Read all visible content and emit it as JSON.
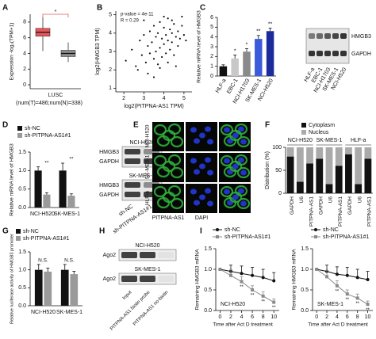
{
  "chart_data": [
    {
      "type": "box",
      "panel": "A",
      "ylabel": "Expression -log₂(TPM+1)",
      "categories": [
        "LUSC"
      ],
      "category_note": "(num(T)=486;num(N)=338)",
      "boxes": [
        {
          "color": "#e8585a",
          "min": 4.3,
          "q1": 6.2,
          "median": 6.7,
          "q3": 7.2,
          "max": 8.6
        },
        {
          "color": "#8c8c8c",
          "min": 2.9,
          "q1": 3.6,
          "median": 4.0,
          "q3": 4.4,
          "max": 5.4
        }
      ],
      "significance": "*",
      "ylim": [
        -0.5,
        9
      ],
      "yticks": [
        0,
        2,
        4,
        6,
        8
      ]
    },
    {
      "type": "scatter",
      "panel": "B",
      "xlabel": "log2(PITPNA-AS1 TPM)",
      "ylabel": "log2(HMGB3 TPM)",
      "annotations": [
        "p-value = 4e-11",
        "R = 0.29"
      ],
      "x": [
        2.1,
        2.4,
        2.6,
        2.8,
        2.9,
        3.0,
        3.1,
        3.2,
        3.3,
        3.3,
        3.4,
        3.5,
        3.5,
        3.6,
        3.6,
        3.7,
        3.7,
        3.8,
        3.8,
        3.9,
        3.9,
        4.0,
        4.0,
        4.1,
        4.1,
        4.2,
        4.2,
        4.3,
        4.3,
        4.4,
        4.4,
        4.5,
        4.5,
        4.6,
        4.7,
        4.7,
        4.8,
        4.9,
        5.0,
        5.1,
        3.2,
        3.0,
        4.6,
        2.7,
        4.9,
        3.5,
        4.0,
        3.8,
        4.2,
        4.4
      ],
      "y": [
        2.5,
        3.1,
        2.2,
        3.6,
        2.8,
        3.9,
        2.4,
        3.3,
        4.1,
        2.9,
        3.5,
        2.6,
        4.4,
        3.0,
        3.8,
        2.3,
        4.0,
        3.2,
        4.6,
        2.7,
        3.7,
        3.4,
        4.3,
        2.9,
        3.9,
        3.6,
        4.8,
        3.1,
        4.2,
        3.5,
        4.0,
        2.8,
        4.5,
        3.8,
        3.3,
        4.1,
        3.7,
        4.4,
        3.9,
        3.6,
        1.8,
        4.7,
        2.2,
        2.0,
        4.9,
        1.6,
        4.9,
        2.1,
        2.4,
        4.7
      ],
      "color": "#111111",
      "xlim": [
        1.6,
        5.4
      ],
      "xticks": [
        2,
        3,
        4,
        5
      ],
      "ylim": [
        0.8,
        5.2
      ],
      "yticks": [
        1,
        2,
        3,
        4,
        5
      ]
    },
    {
      "type": "bar",
      "panel": "C",
      "ylabel": "Relative mRNA level of HMGB3",
      "categories": [
        "HLF-a",
        "EBC-1",
        "NCI-H1703",
        "SK-MES-1",
        "NCI-H520"
      ],
      "values": [
        1.0,
        1.8,
        2.5,
        3.8,
        4.6
      ],
      "errors": [
        0.15,
        0.35,
        0.3,
        0.35,
        0.3
      ],
      "colors": [
        "#111111",
        "#c8c8c8",
        "#8a8a8a",
        "#3b5bdb",
        "#1c2c9c"
      ],
      "significance": [
        null,
        "*",
        "*",
        "**",
        "**"
      ],
      "ylim": [
        0,
        6
      ],
      "yticks": [
        0,
        1,
        2,
        3,
        4,
        5,
        6
      ]
    },
    {
      "type": "bar",
      "panel": "D",
      "ylabel": "Relative mRNA level of HMGB3",
      "categories": [
        "NCI-H520",
        "SK-MES-1"
      ],
      "series": [
        {
          "name": "sh-NC",
          "color": "#111111",
          "values": [
            1.0,
            1.0
          ],
          "errors": [
            0.1,
            0.2
          ]
        },
        {
          "name": "sh-PITPNA-AS1#1",
          "color": "#9a9a9a",
          "values": [
            0.35,
            0.32
          ],
          "errors": [
            0.05,
            0.05
          ],
          "significance": [
            "**",
            "**"
          ]
        }
      ],
      "ylim": [
        0,
        1.5
      ],
      "yticks": [
        {
          "value": 0,
          "label": "0.0"
        },
        0.5,
        {
          "value": 1,
          "label": "1.0"
        },
        1.5
      ]
    },
    {
      "type": "stacked_bar",
      "panel": "F",
      "ylabel": "Distribution (%)",
      "groups": [
        "NCI-H520",
        "SK-MES-1",
        "HLF-a"
      ],
      "categories": [
        "GAPDH",
        "U6",
        "PITPNA-AS1",
        "GAPDH",
        "U6",
        "PITPNA-AS1",
        "GAPDH",
        "U6",
        "PITPNA-AS1"
      ],
      "series": [
        {
          "name": "Cytoplasm",
          "color": "#111111",
          "values": [
            80,
            25,
            65,
            75,
            20,
            60,
            85,
            20,
            75
          ],
          "errors": [
            8,
            10,
            6,
            8,
            10,
            8,
            6,
            10,
            6
          ]
        },
        {
          "name": "Nucleus",
          "color": "#aaaaaa",
          "values": [
            20,
            75,
            35,
            25,
            80,
            40,
            15,
            80,
            25
          ]
        }
      ],
      "ylim": [
        0,
        100
      ],
      "yticks": [
        0,
        50,
        100
      ]
    },
    {
      "type": "bar",
      "panel": "G",
      "ylabel": "Relative luciferase activity of HMGB3 promoter",
      "categories": [
        "NCI-H520",
        "SK-MES-1"
      ],
      "series": [
        {
          "name": "sh-NC",
          "color": "#111111",
          "values": [
            1.0,
            1.0
          ],
          "errors": [
            0.15,
            0.15
          ]
        },
        {
          "name": "sh-PITPNA-AS1#1",
          "color": "#9a9a9a",
          "values": [
            0.95,
            0.88
          ],
          "errors": [
            0.1,
            0.08
          ],
          "significance": [
            "N.S.",
            "N.S."
          ]
        }
      ],
      "ylim": [
        0,
        1.5
      ],
      "yticks": [
        {
          "value": 0,
          "label": "0.0"
        },
        0.5,
        {
          "value": 1,
          "label": "1.0"
        },
        1.5
      ]
    },
    {
      "type": "line",
      "panel": "I",
      "ylabel": "Remaining HMGB3 mRNA",
      "xlabel": "Time after Act D treatment",
      "annotation": "NCI-H520",
      "x": [
        0,
        2,
        4,
        6,
        8,
        10
      ],
      "series": [
        {
          "name": "sh-NC",
          "color": "#111111",
          "marker": "circle",
          "values": [
            1.0,
            0.95,
            0.9,
            0.85,
            0.8,
            0.72
          ],
          "errors": [
            0,
            0.15,
            0.18,
            0.2,
            0.2,
            0.2
          ]
        },
        {
          "name": "sh-PITPNA-AS1#1",
          "color": "#8a8a8a",
          "marker": "square",
          "values": [
            1.0,
            0.85,
            0.7,
            0.5,
            0.35,
            0.2
          ],
          "errors": [
            0,
            0.15,
            0.12,
            0.1,
            0.1,
            0.08
          ],
          "significance": [
            null,
            null,
            "**",
            "**",
            "**",
            "**"
          ]
        }
      ],
      "xlim": [
        -0.8,
        11
      ],
      "xticks": [
        0,
        2,
        4,
        6,
        8,
        10
      ],
      "ylim": [
        0,
        1.5
      ],
      "yticks": [
        {
          "value": 0,
          "label": "0.0"
        },
        0.5,
        {
          "value": 1,
          "label": "1.0"
        },
        1.5
      ]
    },
    {
      "type": "line",
      "ylabel": "Remaining HMGB3 mRNA",
      "xlabel": "Time after Act D treatment",
      "annotation": "SK-MES-1",
      "x": [
        0,
        2,
        4,
        6,
        8,
        10
      ],
      "series": [
        {
          "name": "sh-NC",
          "color": "#111111",
          "marker": "circle",
          "values": [
            1.0,
            0.95,
            0.88,
            0.85,
            0.8,
            0.75
          ],
          "errors": [
            0,
            0.15,
            0.18,
            0.2,
            0.2,
            0.2
          ]
        },
        {
          "name": "sh-PITPNA-AS1#1",
          "color": "#8a8a8a",
          "marker": "square",
          "values": [
            1.0,
            0.82,
            0.6,
            0.4,
            0.3,
            0.15
          ],
          "errors": [
            0,
            0.15,
            0.12,
            0.1,
            0.1,
            0.08
          ],
          "significance": [
            null,
            null,
            "**",
            "**",
            "**",
            "**"
          ]
        }
      ],
      "xlim": [
        -0.8,
        11
      ],
      "xticks": [
        0,
        2,
        4,
        6,
        8,
        10
      ],
      "ylim": [
        0,
        1.5
      ],
      "yticks": [
        {
          "value": 0,
          "label": "0.0"
        },
        0.5,
        {
          "value": 1,
          "label": "1.0"
        },
        1.5
      ]
    }
  ],
  "figures": [
    {
      "rows": [
        "HMGB3",
        "GAPDH"
      ],
      "lanes": [
        "HLF-a",
        "EBC-1",
        "NCI-H1703",
        "SK-MES-1",
        "NCI-H520"
      ]
    },
    {
      "groups": [
        {
          "title": "NCI-H520",
          "rows": [
            "HMGB3",
            "GAPDH"
          ]
        },
        {
          "title": "SK-MES-1",
          "rows": [
            "HMGB3",
            "GAPDH"
          ]
        }
      ],
      "lanes": [
        "sh-NC",
        "sh-PITPNA-AS1#1"
      ]
    },
    {
      "panel": "E",
      "rows": [
        "NCI-H520",
        "SK-MES-1",
        "HLF-a"
      ],
      "columns": [
        "PITPNA-AS1",
        "DAPI"
      ]
    },
    {
      "panel": "H",
      "groups": [
        {
          "title": "NCI-H520",
          "rows": [
            "Ago2"
          ]
        },
        {
          "title": "SK-MES-1",
          "rows": [
            "Ago2"
          ]
        }
      ],
      "lanes": [
        "Input",
        "PITPNA-AS1 biotin probe",
        "PITPNA-AS1 no-biotin"
      ]
    }
  ]
}
